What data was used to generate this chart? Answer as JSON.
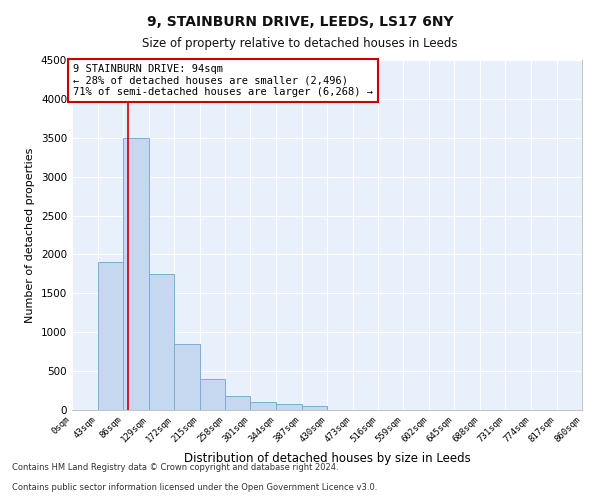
{
  "title1": "9, STAINBURN DRIVE, LEEDS, LS17 6NY",
  "title2": "Size of property relative to detached houses in Leeds",
  "xlabel": "Distribution of detached houses by size in Leeds",
  "ylabel": "Number of detached properties",
  "bar_values": [
    0,
    1900,
    3500,
    1750,
    850,
    400,
    175,
    100,
    75,
    50,
    0,
    0,
    0,
    0,
    0,
    0,
    0,
    0,
    0,
    0
  ],
  "bin_edges": [
    0,
    43,
    86,
    129,
    172,
    215,
    258,
    301,
    344,
    387,
    430,
    473,
    516,
    559,
    602,
    645,
    688,
    731,
    774,
    817,
    860
  ],
  "tick_labels": [
    "0sqm",
    "43sqm",
    "86sqm",
    "129sqm",
    "172sqm",
    "215sqm",
    "258sqm",
    "301sqm",
    "344sqm",
    "387sqm",
    "430sqm",
    "473sqm",
    "516sqm",
    "559sqm",
    "602sqm",
    "645sqm",
    "688sqm",
    "731sqm",
    "774sqm",
    "817sqm",
    "860sqm"
  ],
  "bar_color": "#c5d8f0",
  "bar_edge_color": "#7aaed6",
  "vline_x": 94,
  "vline_color": "#cc0000",
  "ylim": [
    0,
    4500
  ],
  "yticks": [
    0,
    500,
    1000,
    1500,
    2000,
    2500,
    3000,
    3500,
    4000,
    4500
  ],
  "annotation_title": "9 STAINBURN DRIVE: 94sqm",
  "annotation_line1": "← 28% of detached houses are smaller (2,496)",
  "annotation_line2": "71% of semi-detached houses are larger (6,268) →",
  "annotation_box_color": "#ffffff",
  "annotation_box_edge_color": "#cc0000",
  "footer1": "Contains HM Land Registry data © Crown copyright and database right 2024.",
  "footer2": "Contains public sector information licensed under the Open Government Licence v3.0.",
  "bg_color": "#e8f0fb",
  "fig_bg_color": "#ffffff",
  "grid_color": "#ffffff"
}
